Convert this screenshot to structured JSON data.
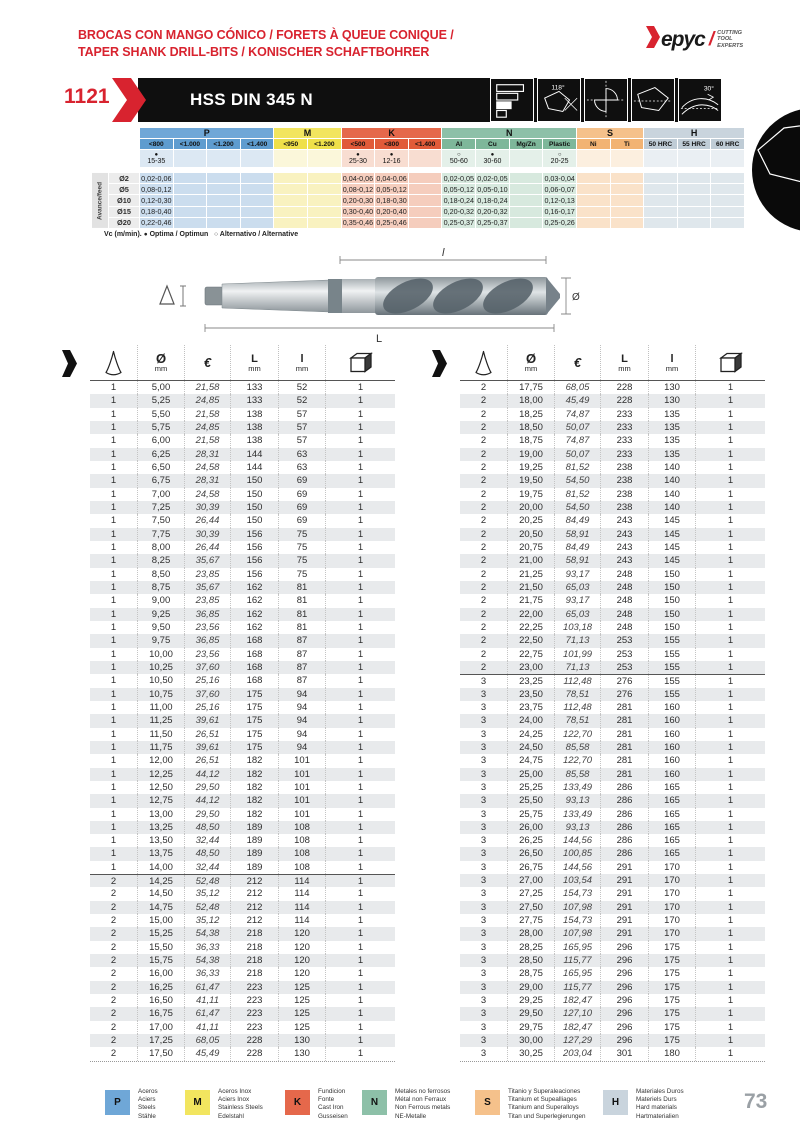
{
  "page": {
    "title_line1": "BROCAS CON MANGO CÓNICO / FORETS À QUEUE CONIQUE /",
    "title_line2": "TAPER SHANK DRILL-BITS / KONISCHER SCHAFTBOHRER",
    "page_number": "73"
  },
  "logo": {
    "brand": "epyc",
    "tagline": [
      "CUTTING",
      "TOOL",
      "EXPERTS"
    ]
  },
  "product_bar": {
    "code": "1121",
    "name": "HSS DIN 345 N",
    "point_angle": "118°",
    "helix_angle": "30°"
  },
  "speed_table": {
    "row_axis_label": "Avance/feed",
    "note_prefix": "Vc (m/min).",
    "note_optimal_marker": "●",
    "note_optimal_label": "Optima / Optimun",
    "note_alt_marker": "○",
    "note_alt_label": "Alternativo / Alternative",
    "groups": [
      {
        "code": "P",
        "header": "#6FA7D7",
        "sub": "#5E9CCF",
        "vc": "#DCE8F3",
        "body": "#CBDDEE",
        "cols": [
          "<800",
          "<1.000",
          "<1.200",
          "<1.400"
        ]
      },
      {
        "code": "M",
        "header": "#F2E55F",
        "sub": "#EFE04A",
        "vc": "#FBF7DA",
        "body": "#F9F2C0",
        "cols": [
          "<950",
          "<1.200"
        ]
      },
      {
        "code": "K",
        "header": "#E5684B",
        "sub": "#E15A39",
        "vc": "#F8DDD1",
        "body": "#F5CDBD",
        "cols": [
          "<500",
          "<800",
          "<1.400"
        ]
      },
      {
        "code": "N",
        "header": "#8DC0A8",
        "sub": "#7EB79A",
        "vc": "#E4F0E9",
        "body": "#D7E9DE",
        "cols": [
          "Al",
          "Cu",
          "Mg/Zn",
          "Plastic"
        ]
      },
      {
        "code": "S",
        "header": "#F5C18B",
        "sub": "#F2B373",
        "vc": "#FCEFDF",
        "body": "#FAE2C9",
        "cols": [
          "Ni",
          "Ti"
        ]
      },
      {
        "code": "H",
        "header": "#C9D4DD",
        "sub": "#BFCCD6",
        "vc": "#EAEFF3",
        "body": "#DFE7EC",
        "cols": [
          "50 HRC",
          "55 HRC",
          "60 HRC"
        ]
      }
    ],
    "vc_row": [
      {
        "marker": "●",
        "value": "15-35"
      },
      null,
      null,
      null,
      null,
      null,
      {
        "marker": "●",
        "value": "25-30"
      },
      {
        "marker": "●",
        "value": "12-16"
      },
      null,
      {
        "marker": "○",
        "value": "50-60"
      },
      {
        "marker": "●",
        "value": "30-60"
      },
      null,
      {
        "marker": "○",
        "value": "20-25"
      },
      null,
      null,
      null,
      null,
      null
    ],
    "rows": [
      {
        "label": "Ø2",
        "values": [
          "0,02-0,06",
          "",
          "",
          "",
          "",
          "",
          "0,04-0,06",
          "0,04-0,06",
          "",
          "0,02-0,05",
          "0,02-0,05",
          "",
          "0,03-0,04",
          "",
          "",
          "",
          "",
          ""
        ]
      },
      {
        "label": "Ø5",
        "values": [
          "0,08-0,12",
          "",
          "",
          "",
          "",
          "",
          "0,08-0,12",
          "0,05-0,12",
          "",
          "0,05-0,12",
          "0,05-0,10",
          "",
          "0,06-0,07",
          "",
          "",
          "",
          "",
          ""
        ]
      },
      {
        "label": "Ø10",
        "values": [
          "0,12-0,30",
          "",
          "",
          "",
          "",
          "",
          "0,20-0,30",
          "0,18-0,30",
          "",
          "0,18-0,24",
          "0,18-0,24",
          "",
          "0,12-0,13",
          "",
          "",
          "",
          "",
          ""
        ]
      },
      {
        "label": "Ø15",
        "values": [
          "0,18-0,40",
          "",
          "",
          "",
          "",
          "",
          "0,30-0,40",
          "0,20-0,40",
          "",
          "0,20-0,32",
          "0,20-0,32",
          "",
          "0,16-0,17",
          "",
          "",
          "",
          "",
          ""
        ]
      },
      {
        "label": "Ø20",
        "values": [
          "0,22-0,46",
          "",
          "",
          "",
          "",
          "",
          "0,35-0,46",
          "0,25-0,46",
          "",
          "0,25-0,37",
          "0,25-0,37",
          "",
          "0,25-0,26",
          "",
          "",
          "",
          "",
          ""
        ]
      }
    ]
  },
  "diagram": {
    "flute_length": "l",
    "total_length": "L",
    "diameter": "Ø"
  },
  "catalog": {
    "header": {
      "diameter_symbol": "Ø",
      "unit": "mm",
      "price_symbol": "€",
      "total_length": "L",
      "flute_length": "l"
    },
    "left_rows": [
      [
        "1",
        "5,00",
        "21,58",
        "133",
        "52",
        "1"
      ],
      [
        "1",
        "5,25",
        "24,85",
        "133",
        "52",
        "1"
      ],
      [
        "1",
        "5,50",
        "21,58",
        "138",
        "57",
        "1"
      ],
      [
        "1",
        "5,75",
        "24,85",
        "138",
        "57",
        "1"
      ],
      [
        "1",
        "6,00",
        "21,58",
        "138",
        "57",
        "1"
      ],
      [
        "1",
        "6,25",
        "28,31",
        "144",
        "63",
        "1"
      ],
      [
        "1",
        "6,50",
        "24,58",
        "144",
        "63",
        "1"
      ],
      [
        "1",
        "6,75",
        "28,31",
        "150",
        "69",
        "1"
      ],
      [
        "1",
        "7,00",
        "24,58",
        "150",
        "69",
        "1"
      ],
      [
        "1",
        "7,25",
        "30,39",
        "150",
        "69",
        "1"
      ],
      [
        "1",
        "7,50",
        "26,44",
        "150",
        "69",
        "1"
      ],
      [
        "1",
        "7,75",
        "30,39",
        "156",
        "75",
        "1"
      ],
      [
        "1",
        "8,00",
        "26,44",
        "156",
        "75",
        "1"
      ],
      [
        "1",
        "8,25",
        "35,67",
        "156",
        "75",
        "1"
      ],
      [
        "1",
        "8,50",
        "23,85",
        "156",
        "75",
        "1"
      ],
      [
        "1",
        "8,75",
        "35,67",
        "162",
        "81",
        "1"
      ],
      [
        "1",
        "9,00",
        "23,85",
        "162",
        "81",
        "1"
      ],
      [
        "1",
        "9,25",
        "36,85",
        "162",
        "81",
        "1"
      ],
      [
        "1",
        "9,50",
        "23,56",
        "162",
        "81",
        "1"
      ],
      [
        "1",
        "9,75",
        "36,85",
        "168",
        "87",
        "1"
      ],
      [
        "1",
        "10,00",
        "23,56",
        "168",
        "87",
        "1"
      ],
      [
        "1",
        "10,25",
        "37,60",
        "168",
        "87",
        "1"
      ],
      [
        "1",
        "10,50",
        "25,16",
        "168",
        "87",
        "1"
      ],
      [
        "1",
        "10,75",
        "37,60",
        "175",
        "94",
        "1"
      ],
      [
        "1",
        "11,00",
        "25,16",
        "175",
        "94",
        "1"
      ],
      [
        "1",
        "11,25",
        "39,61",
        "175",
        "94",
        "1"
      ],
      [
        "1",
        "11,50",
        "26,51",
        "175",
        "94",
        "1"
      ],
      [
        "1",
        "11,75",
        "39,61",
        "175",
        "94",
        "1"
      ],
      [
        "1",
        "12,00",
        "26,51",
        "182",
        "101",
        "1"
      ],
      [
        "1",
        "12,25",
        "44,12",
        "182",
        "101",
        "1"
      ],
      [
        "1",
        "12,50",
        "29,50",
        "182",
        "101",
        "1"
      ],
      [
        "1",
        "12,75",
        "44,12",
        "182",
        "101",
        "1"
      ],
      [
        "1",
        "13,00",
        "29,50",
        "182",
        "101",
        "1"
      ],
      [
        "1",
        "13,25",
        "48,50",
        "189",
        "108",
        "1"
      ],
      [
        "1",
        "13,50",
        "32,44",
        "189",
        "108",
        "1"
      ],
      [
        "1",
        "13,75",
        "48,50",
        "189",
        "108",
        "1"
      ],
      [
        "1",
        "14,00",
        "32,44",
        "189",
        "108",
        "1"
      ],
      [
        "2",
        "14,25",
        "52,48",
        "212",
        "114",
        "1"
      ],
      [
        "2",
        "14,50",
        "35,12",
        "212",
        "114",
        "1"
      ],
      [
        "2",
        "14,75",
        "52,48",
        "212",
        "114",
        "1"
      ],
      [
        "2",
        "15,00",
        "35,12",
        "212",
        "114",
        "1"
      ],
      [
        "2",
        "15,25",
        "54,38",
        "218",
        "120",
        "1"
      ],
      [
        "2",
        "15,50",
        "36,33",
        "218",
        "120",
        "1"
      ],
      [
        "2",
        "15,75",
        "54,38",
        "218",
        "120",
        "1"
      ],
      [
        "2",
        "16,00",
        "36,33",
        "218",
        "120",
        "1"
      ],
      [
        "2",
        "16,25",
        "61,47",
        "223",
        "125",
        "1"
      ],
      [
        "2",
        "16,50",
        "41,11",
        "223",
        "125",
        "1"
      ],
      [
        "2",
        "16,75",
        "61,47",
        "223",
        "125",
        "1"
      ],
      [
        "2",
        "17,00",
        "41,11",
        "223",
        "125",
        "1"
      ],
      [
        "2",
        "17,25",
        "68,05",
        "228",
        "130",
        "1"
      ],
      [
        "2",
        "17,50",
        "45,49",
        "228",
        "130",
        "1"
      ]
    ],
    "right_rows": [
      [
        "2",
        "17,75",
        "68,05",
        "228",
        "130",
        "1"
      ],
      [
        "2",
        "18,00",
        "45,49",
        "228",
        "130",
        "1"
      ],
      [
        "2",
        "18,25",
        "74,87",
        "233",
        "135",
        "1"
      ],
      [
        "2",
        "18,50",
        "50,07",
        "233",
        "135",
        "1"
      ],
      [
        "2",
        "18,75",
        "74,87",
        "233",
        "135",
        "1"
      ],
      [
        "2",
        "19,00",
        "50,07",
        "233",
        "135",
        "1"
      ],
      [
        "2",
        "19,25",
        "81,52",
        "238",
        "140",
        "1"
      ],
      [
        "2",
        "19,50",
        "54,50",
        "238",
        "140",
        "1"
      ],
      [
        "2",
        "19,75",
        "81,52",
        "238",
        "140",
        "1"
      ],
      [
        "2",
        "20,00",
        "54,50",
        "238",
        "140",
        "1"
      ],
      [
        "2",
        "20,25",
        "84,49",
        "243",
        "145",
        "1"
      ],
      [
        "2",
        "20,50",
        "58,91",
        "243",
        "145",
        "1"
      ],
      [
        "2",
        "20,75",
        "84,49",
        "243",
        "145",
        "1"
      ],
      [
        "2",
        "21,00",
        "58,91",
        "243",
        "145",
        "1"
      ],
      [
        "2",
        "21,25",
        "93,17",
        "248",
        "150",
        "1"
      ],
      [
        "2",
        "21,50",
        "65,03",
        "248",
        "150",
        "1"
      ],
      [
        "2",
        "21,75",
        "93,17",
        "248",
        "150",
        "1"
      ],
      [
        "2",
        "22,00",
        "65,03",
        "248",
        "150",
        "1"
      ],
      [
        "2",
        "22,25",
        "103,18",
        "248",
        "150",
        "1"
      ],
      [
        "2",
        "22,50",
        "71,13",
        "253",
        "155",
        "1"
      ],
      [
        "2",
        "22,75",
        "101,99",
        "253",
        "155",
        "1"
      ],
      [
        "2",
        "23,00",
        "71,13",
        "253",
        "155",
        "1"
      ],
      [
        "3",
        "23,25",
        "112,48",
        "276",
        "155",
        "1"
      ],
      [
        "3",
        "23,50",
        "78,51",
        "276",
        "155",
        "1"
      ],
      [
        "3",
        "23,75",
        "112,48",
        "281",
        "160",
        "1"
      ],
      [
        "3",
        "24,00",
        "78,51",
        "281",
        "160",
        "1"
      ],
      [
        "3",
        "24,25",
        "122,70",
        "281",
        "160",
        "1"
      ],
      [
        "3",
        "24,50",
        "85,58",
        "281",
        "160",
        "1"
      ],
      [
        "3",
        "24,75",
        "122,70",
        "281",
        "160",
        "1"
      ],
      [
        "3",
        "25,00",
        "85,58",
        "281",
        "160",
        "1"
      ],
      [
        "3",
        "25,25",
        "133,49",
        "286",
        "165",
        "1"
      ],
      [
        "3",
        "25,50",
        "93,13",
        "286",
        "165",
        "1"
      ],
      [
        "3",
        "25,75",
        "133,49",
        "286",
        "165",
        "1"
      ],
      [
        "3",
        "26,00",
        "93,13",
        "286",
        "165",
        "1"
      ],
      [
        "3",
        "26,25",
        "144,56",
        "286",
        "165",
        "1"
      ],
      [
        "3",
        "26,50",
        "100,85",
        "286",
        "165",
        "1"
      ],
      [
        "3",
        "26,75",
        "144,56",
        "291",
        "170",
        "1"
      ],
      [
        "3",
        "27,00",
        "103,54",
        "291",
        "170",
        "1"
      ],
      [
        "3",
        "27,25",
        "154,73",
        "291",
        "170",
        "1"
      ],
      [
        "3",
        "27,50",
        "107,98",
        "291",
        "170",
        "1"
      ],
      [
        "3",
        "27,75",
        "154,73",
        "291",
        "170",
        "1"
      ],
      [
        "3",
        "28,00",
        "107,98",
        "291",
        "170",
        "1"
      ],
      [
        "3",
        "28,25",
        "165,95",
        "296",
        "175",
        "1"
      ],
      [
        "3",
        "28,50",
        "115,77",
        "296",
        "175",
        "1"
      ],
      [
        "3",
        "28,75",
        "165,95",
        "296",
        "175",
        "1"
      ],
      [
        "3",
        "29,00",
        "115,77",
        "296",
        "175",
        "1"
      ],
      [
        "3",
        "29,25",
        "182,47",
        "296",
        "175",
        "1"
      ],
      [
        "3",
        "29,50",
        "127,10",
        "296",
        "175",
        "1"
      ],
      [
        "3",
        "29,75",
        "182,47",
        "296",
        "175",
        "1"
      ],
      [
        "3",
        "30,00",
        "127,29",
        "296",
        "175",
        "1"
      ],
      [
        "3",
        "30,25",
        "203,04",
        "301",
        "180",
        "1"
      ]
    ]
  },
  "legend": [
    {
      "code": "P",
      "color": "#6FA7D7",
      "lines": [
        "Aceros",
        "Aciers",
        "Steels",
        "Stähle"
      ]
    },
    {
      "code": "M",
      "color": "#F2E55F",
      "lines": [
        "Aceros Inox",
        "Aciers Inox",
        "Stainless Steels",
        "Edelstahl"
      ]
    },
    {
      "code": "K",
      "color": "#E5684B",
      "lines": [
        "Fundicion",
        "Fonte",
        "Cast Iron",
        "Gusseisen"
      ]
    },
    {
      "code": "N",
      "color": "#8DC0A8",
      "lines": [
        "Metales no ferrosos",
        "Métal non Ferraux",
        "Non Ferrous metals",
        "NE-Metalle"
      ]
    },
    {
      "code": "S",
      "color": "#F5C18B",
      "lines": [
        "Titanio y Superaleaciones",
        "Titanium et Supealliages",
        "Titanium and Superalloys",
        "Titan und Superlegierungen"
      ]
    },
    {
      "code": "H",
      "color": "#C9D4DD",
      "lines": [
        "Materiales Duros",
        "Materiels Durs",
        "Hard materials",
        "Hartmaterialien"
      ]
    }
  ]
}
